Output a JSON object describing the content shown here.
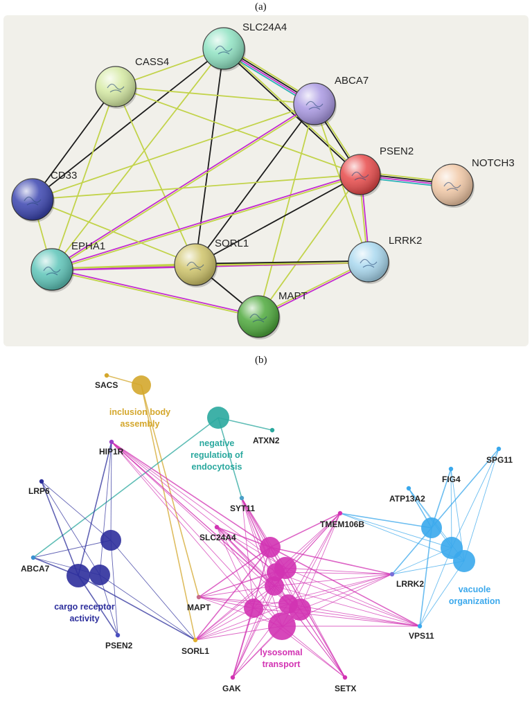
{
  "panels": {
    "a": {
      "label": "(a)"
    },
    "b": {
      "label": "(b)"
    }
  },
  "colors": {
    "text_mining": "#c2d34a",
    "coexpression": "#1a1a1a",
    "experiments": "#c22bd0",
    "databases": "#2bb0b8",
    "panel_a_bg": "#f1f0ea"
  },
  "network_a": {
    "nodes": [
      {
        "id": "SLC24A4",
        "label": "SLC24A4",
        "color": "#8fe2c2"
      },
      {
        "id": "CASS4",
        "label": "CASS4",
        "color": "#d5eaa3"
      },
      {
        "id": "ABCA7",
        "label": "ABCA7",
        "color": "#a998e2"
      },
      {
        "id": "PSEN2",
        "label": "PSEN2",
        "color": "#e84b4b"
      },
      {
        "id": "NOTCH3",
        "label": "NOTCH3",
        "color": "#f1c8a6"
      },
      {
        "id": "CD33",
        "label": "CD33",
        "color": "#3b45b0"
      },
      {
        "id": "EPHA1",
        "label": "EPHA1",
        "color": "#5ec5b9"
      },
      {
        "id": "SORL1",
        "label": "SORL1",
        "color": "#cfc46a"
      },
      {
        "id": "LRRK2",
        "label": "LRRK2",
        "color": "#a9d8ef"
      },
      {
        "id": "MAPT",
        "label": "MAPT",
        "color": "#4ea93c"
      }
    ],
    "edges": [
      {
        "a": "SLC24A4",
        "b": "ABCA7",
        "types": [
          "text_mining",
          "coexpression",
          "experiments",
          "databases"
        ]
      },
      {
        "a": "SLC24A4",
        "b": "CASS4",
        "types": [
          "text_mining"
        ]
      },
      {
        "a": "SLC24A4",
        "b": "PSEN2",
        "types": [
          "text_mining",
          "coexpression"
        ]
      },
      {
        "a": "SLC24A4",
        "b": "CD33",
        "types": [
          "coexpression"
        ]
      },
      {
        "a": "SLC24A4",
        "b": "EPHA1",
        "types": [
          "text_mining"
        ]
      },
      {
        "a": "SLC24A4",
        "b": "SORL1",
        "types": [
          "coexpression"
        ]
      },
      {
        "a": "CASS4",
        "b": "ABCA7",
        "types": [
          "text_mining"
        ]
      },
      {
        "a": "CASS4",
        "b": "PSEN2",
        "types": [
          "text_mining"
        ]
      },
      {
        "a": "CASS4",
        "b": "CD33",
        "types": [
          "coexpression"
        ]
      },
      {
        "a": "CASS4",
        "b": "EPHA1",
        "types": [
          "text_mining"
        ]
      },
      {
        "a": "CASS4",
        "b": "SORL1",
        "types": [
          "text_mining"
        ]
      },
      {
        "a": "ABCA7",
        "b": "PSEN2",
        "types": [
          "text_mining",
          "coexpression"
        ]
      },
      {
        "a": "ABCA7",
        "b": "CD33",
        "types": [
          "text_mining"
        ]
      },
      {
        "a": "ABCA7",
        "b": "EPHA1",
        "types": [
          "text_mining",
          "experiments"
        ]
      },
      {
        "a": "ABCA7",
        "b": "SORL1",
        "types": [
          "coexpression"
        ]
      },
      {
        "a": "ABCA7",
        "b": "MAPT",
        "types": [
          "text_mining"
        ]
      },
      {
        "a": "ABCA7",
        "b": "LRRK2",
        "types": [
          "text_mining"
        ]
      },
      {
        "a": "PSEN2",
        "b": "NOTCH3",
        "types": [
          "text_mining",
          "coexpression",
          "experiments",
          "databases"
        ]
      },
      {
        "a": "PSEN2",
        "b": "CD33",
        "types": [
          "text_mining"
        ]
      },
      {
        "a": "PSEN2",
        "b": "EPHA1",
        "types": [
          "text_mining",
          "experiments"
        ]
      },
      {
        "a": "PSEN2",
        "b": "SORL1",
        "types": [
          "coexpression"
        ]
      },
      {
        "a": "PSEN2",
        "b": "LRRK2",
        "types": [
          "experiments",
          "text_mining"
        ]
      },
      {
        "a": "PSEN2",
        "b": "MAPT",
        "types": [
          "text_mining"
        ]
      },
      {
        "a": "CD33",
        "b": "EPHA1",
        "types": [
          "text_mining"
        ]
      },
      {
        "a": "CD33",
        "b": "SORL1",
        "types": [
          "text_mining"
        ]
      },
      {
        "a": "EPHA1",
        "b": "SORL1",
        "types": [
          "text_mining",
          "experiments"
        ]
      },
      {
        "a": "EPHA1",
        "b": "MAPT",
        "types": [
          "experiments",
          "text_mining"
        ]
      },
      {
        "a": "EPHA1",
        "b": "LRRK2",
        "types": [
          "text_mining",
          "experiments"
        ]
      },
      {
        "a": "SORL1",
        "b": "LRRK2",
        "types": [
          "coexpression",
          "text_mining"
        ]
      },
      {
        "a": "SORL1",
        "b": "MAPT",
        "types": [
          "coexpression"
        ]
      },
      {
        "a": "MAPT",
        "b": "LRRK2",
        "types": [
          "text_mining",
          "experiments"
        ]
      }
    ]
  },
  "network_b": {
    "clusters": [
      {
        "id": "inclusion",
        "label_lines": [
          "inclusion body",
          "assembly"
        ],
        "color": "#d4a72c"
      },
      {
        "id": "endocytosis",
        "label_lines": [
          "negative",
          "regulation of",
          "endocytosis"
        ],
        "color": "#2aa89e"
      },
      {
        "id": "cargo",
        "label_lines": [
          "cargo receptor",
          "activity"
        ],
        "color": "#2d2f9c"
      },
      {
        "id": "lysosomal",
        "label_lines": [
          "lysosomal",
          "transport"
        ],
        "color": "#d233b3"
      },
      {
        "id": "vacuole",
        "label_lines": [
          "vacuole",
          "organization"
        ],
        "color": "#3aa8ec"
      }
    ],
    "genes": [
      {
        "id": "SACS",
        "label": "SACS",
        "color": "#d4a72c"
      },
      {
        "id": "ATXN2",
        "label": "ATXN2",
        "color": "#2aa89e"
      },
      {
        "id": "HIP1R",
        "label": "HIP1R",
        "color": "#9a3fc9"
      },
      {
        "id": "LRP6",
        "label": "LRP6",
        "color": "#2d2f9c"
      },
      {
        "id": "ABCA7",
        "label": "ABCA7",
        "color": "#3a8fd0"
      },
      {
        "id": "PSEN2",
        "label": "PSEN2",
        "color": "#4a4fc0"
      },
      {
        "id": "SORL1",
        "label": "SORL1",
        "color": "#e0b030"
      },
      {
        "id": "MAPT",
        "label": "MAPT",
        "color": "#c76a8a"
      },
      {
        "id": "SLC24A4",
        "label": "SLC24A4",
        "color": "#d233b3"
      },
      {
        "id": "SYT11",
        "label": "SYT11",
        "color": "#4aa0c8"
      },
      {
        "id": "TMEM106B",
        "label": "TMEM106B",
        "color": "#d233b3"
      },
      {
        "id": "GAK",
        "label": "GAK",
        "color": "#d233b3"
      },
      {
        "id": "SETX",
        "label": "SETX",
        "color": "#d233b3"
      },
      {
        "id": "LRRK2",
        "label": "LRRK2",
        "color": "#7a6fd8"
      },
      {
        "id": "VPS11",
        "label": "VPS11",
        "color": "#3aa8ec"
      },
      {
        "id": "ATP13A2",
        "label": "ATP13A2",
        "color": "#3aa8ec"
      },
      {
        "id": "FIG4",
        "label": "FIG4",
        "color": "#3aa8ec"
      },
      {
        "id": "SPG11",
        "label": "SPG11",
        "color": "#3aa8ec"
      }
    ]
  }
}
